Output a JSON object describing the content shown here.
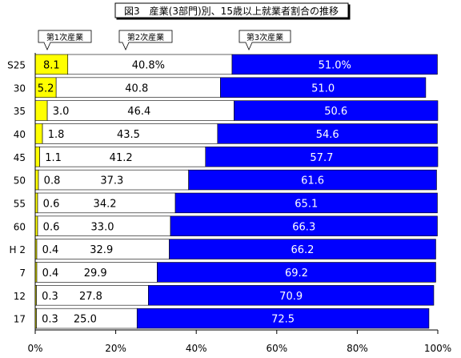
{
  "chart_data": {
    "type": "bar",
    "orientation": "horizontal",
    "stacked": "percent",
    "title": "図3　産業(3部門)別、15歳以上就業者割合の推移",
    "categories": [
      "S25",
      "30",
      "35",
      "40",
      "45",
      "50",
      "55",
      "60",
      "H 2",
      "7",
      "12",
      "17"
    ],
    "series": [
      {
        "name": "第1次産業",
        "color": "#ffff00",
        "values": [
          8.1,
          5.2,
          3.0,
          1.8,
          1.1,
          0.8,
          0.6,
          0.6,
          0.4,
          0.4,
          0.3,
          0.3
        ],
        "labels": [
          "8.1",
          "5.2",
          "3.0",
          "1.8",
          "1.1",
          "0.8",
          "0.6",
          "0.6",
          "0.4",
          "0.4",
          "0.3",
          "0.3"
        ]
      },
      {
        "name": "第2次産業",
        "color": "#ffffff",
        "values": [
          40.8,
          40.8,
          46.4,
          43.5,
          41.2,
          37.3,
          34.2,
          33.0,
          32.9,
          29.9,
          27.8,
          25.0
        ],
        "labels": [
          "40.8%",
          "40.8",
          "46.4",
          "43.5",
          "41.2",
          "37.3",
          "34.2",
          "33.0",
          "32.9",
          "29.9",
          "27.8",
          "25.0"
        ]
      },
      {
        "name": "第3次産業",
        "color": "#0000ff",
        "values": [
          51.0,
          51.0,
          50.6,
          54.6,
          57.7,
          61.6,
          65.1,
          66.3,
          66.2,
          69.2,
          70.9,
          72.5
        ],
        "labels": [
          "51.0%",
          "51.0",
          "50.6",
          "54.6",
          "57.7",
          "61.6",
          "65.1",
          "66.3",
          "66.2",
          "69.2",
          "70.9",
          "72.5"
        ]
      }
    ],
    "xlim": [
      0,
      100
    ],
    "xticks": [
      "0%",
      "20%",
      "40%",
      "60%",
      "80%",
      "100%"
    ],
    "grid": false,
    "legend": "top-callouts"
  }
}
